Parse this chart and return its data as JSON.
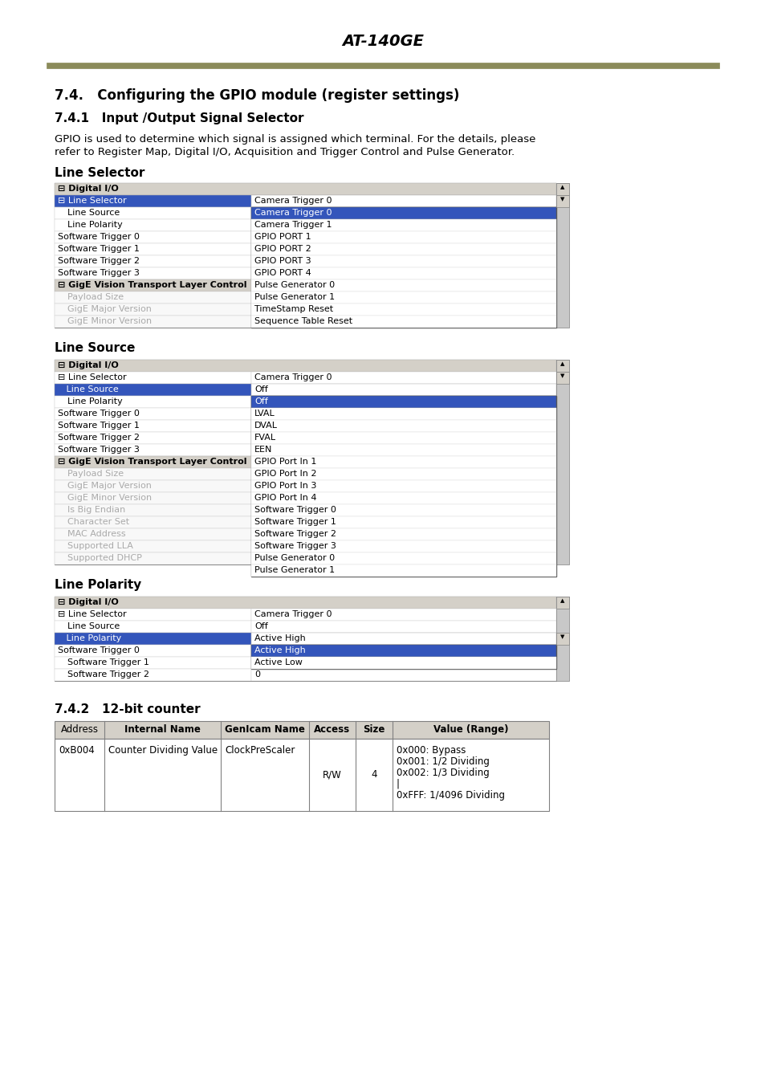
{
  "page_title": "AT-140GE",
  "header_line_color": "#8B8B5A",
  "section_title": "7.4.   Configuring the GPIO module (register settings)",
  "subsection_title_1": "7.4.1   Input /Output Signal Selector",
  "body_text_1a": "GPIO is used to determine which signal is assigned which terminal. For the details, please",
  "body_text_1b": "refer to Register Map, Digital I/O, Acquisition and Trigger Control and Pulse Generator.",
  "line_selector_label": "Line Selector",
  "line_source_label": "Line Source",
  "line_polarity_label": "Line Polarity",
  "subsection_title_2": "7.4.2   12-bit counter",
  "table_headers": [
    "Address",
    "Internal Name",
    "GenIcam Name",
    "Access",
    "Size",
    "Value (Range)"
  ],
  "table_col_widths": [
    62,
    145,
    110,
    58,
    46,
    195
  ],
  "table_row_addr": "0xB004",
  "table_row_internal": "Counter Dividing Value",
  "table_row_genicam": "ClockPreScaler",
  "table_row_access": "R/W",
  "table_row_size": "4",
  "table_row_value": [
    "0x000: Bypass",
    "0x001: 1/2 Dividing",
    "0x002: 1/3 Dividing",
    "|",
    "0xFFF: 1/4096 Dividing"
  ],
  "bg_color": "#ffffff",
  "panel_header_bg": "#d4d0c8",
  "panel_selected_bg": "#3355bb",
  "panel_dropdown_sel_bg": "#3355bb",
  "panel_border": "#808080",
  "scrollbar_bg": "#c8c8c8",
  "gray_row_text": "#aaaaaa",
  "gray_row_bg": "#f8f8f8"
}
